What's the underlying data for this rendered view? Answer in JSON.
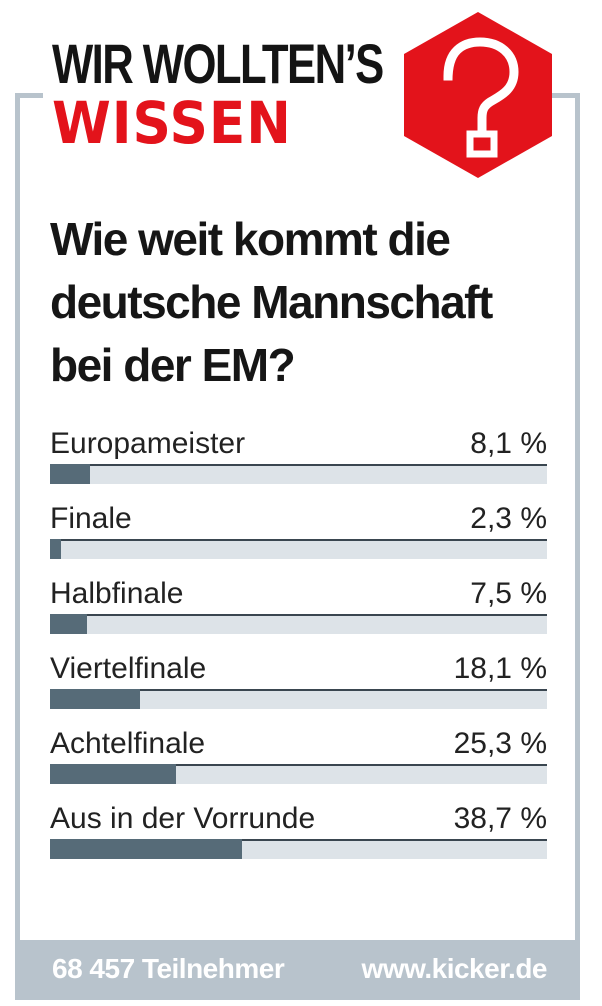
{
  "header": {
    "line1": "WIR WOLLTEN’S",
    "line2": "WISSEN",
    "icon": "question-mark-hexagon-icon",
    "accent_color": "#e3131b",
    "frame_color": "#b8c3cc"
  },
  "question": "Wie weit kommt die deutsche Mannschaft bei der EM?",
  "chart_data": {
    "type": "bar",
    "orientation": "horizontal",
    "categories": [
      "Europameister",
      "Finale",
      "Halbfinale",
      "Viertelfinale",
      "Achtelfinale",
      "Aus in der Vorrunde"
    ],
    "values": [
      8.1,
      2.3,
      7.5,
      18.1,
      25.3,
      38.7
    ],
    "value_labels": [
      "8,1 %",
      "2,3 %",
      "7,5 %",
      "18,1 %",
      "25,3 %",
      "38,7 %"
    ],
    "xlim": [
      0,
      100
    ],
    "unit": "%",
    "bar_color": "#566b78",
    "track_color": "#dde3e8"
  },
  "footer": {
    "participants": "68 457 Teilnehmer",
    "website": "www.kicker.de"
  }
}
